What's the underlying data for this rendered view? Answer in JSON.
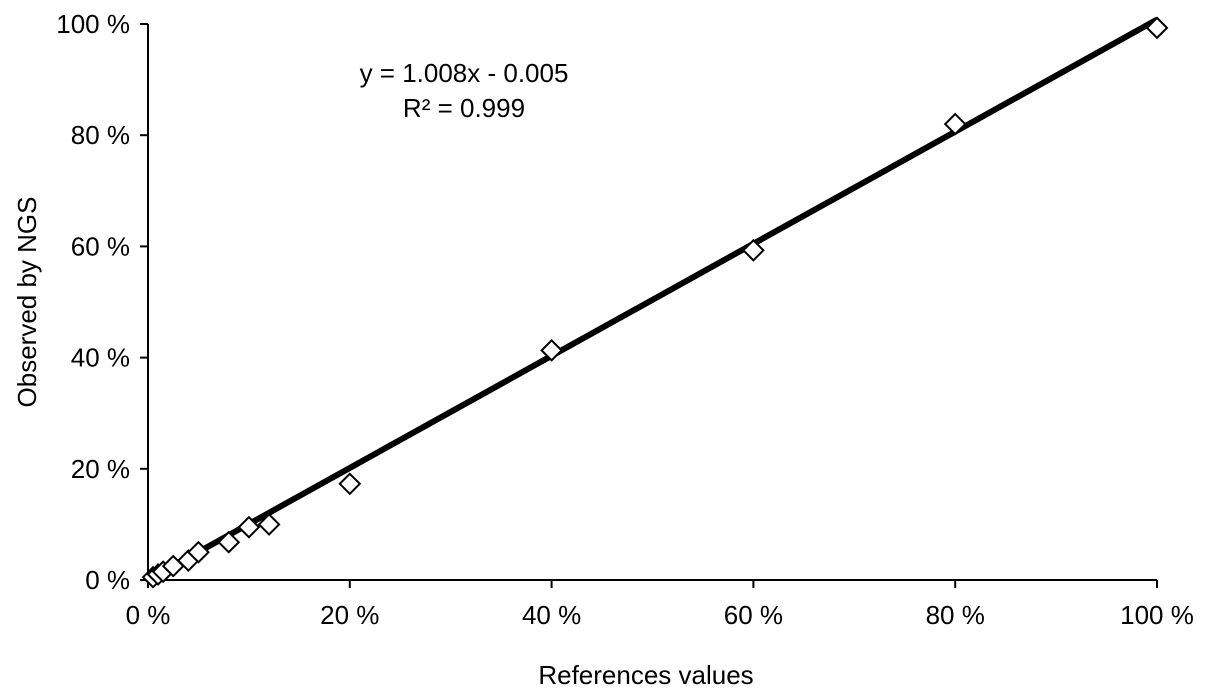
{
  "chart_data": {
    "type": "scatter",
    "title": "",
    "xlabel": "References values",
    "ylabel": "Observed by NGS",
    "xlim": [
      0,
      100
    ],
    "ylim": [
      0,
      100
    ],
    "x_ticks": [
      0,
      20,
      40,
      60,
      80,
      100
    ],
    "y_ticks": [
      0,
      20,
      40,
      60,
      80,
      100
    ],
    "x_tick_labels": [
      "0 %",
      "20 %",
      "40 %",
      "60 %",
      "80 %",
      "100 %"
    ],
    "y_tick_labels": [
      "0 %",
      "20 %",
      "40 %",
      "60 %",
      "80 %",
      "100 %"
    ],
    "grid": false,
    "legend": "none",
    "marker": "open-diamond",
    "marker_color": "#000000",
    "trendline_color": "#000000",
    "trendline": {
      "slope": 1.008,
      "intercept": -0.005,
      "equation_label": "y = 1.008x - 0.005",
      "r2_label": "R² = 0.999"
    },
    "points": [
      {
        "x": 0.5,
        "y": 0.5
      },
      {
        "x": 1,
        "y": 1
      },
      {
        "x": 1.5,
        "y": 1.5
      },
      {
        "x": 2.5,
        "y": 2.5
      },
      {
        "x": 4,
        "y": 3.5
      },
      {
        "x": 5,
        "y": 5
      },
      {
        "x": 8,
        "y": 6.8
      },
      {
        "x": 10,
        "y": 9.5
      },
      {
        "x": 12,
        "y": 10
      },
      {
        "x": 20,
        "y": 17.3
      },
      {
        "x": 40,
        "y": 41.3
      },
      {
        "x": 60,
        "y": 59.3
      },
      {
        "x": 80,
        "y": 82
      },
      {
        "x": 100,
        "y": 99.3
      }
    ]
  }
}
